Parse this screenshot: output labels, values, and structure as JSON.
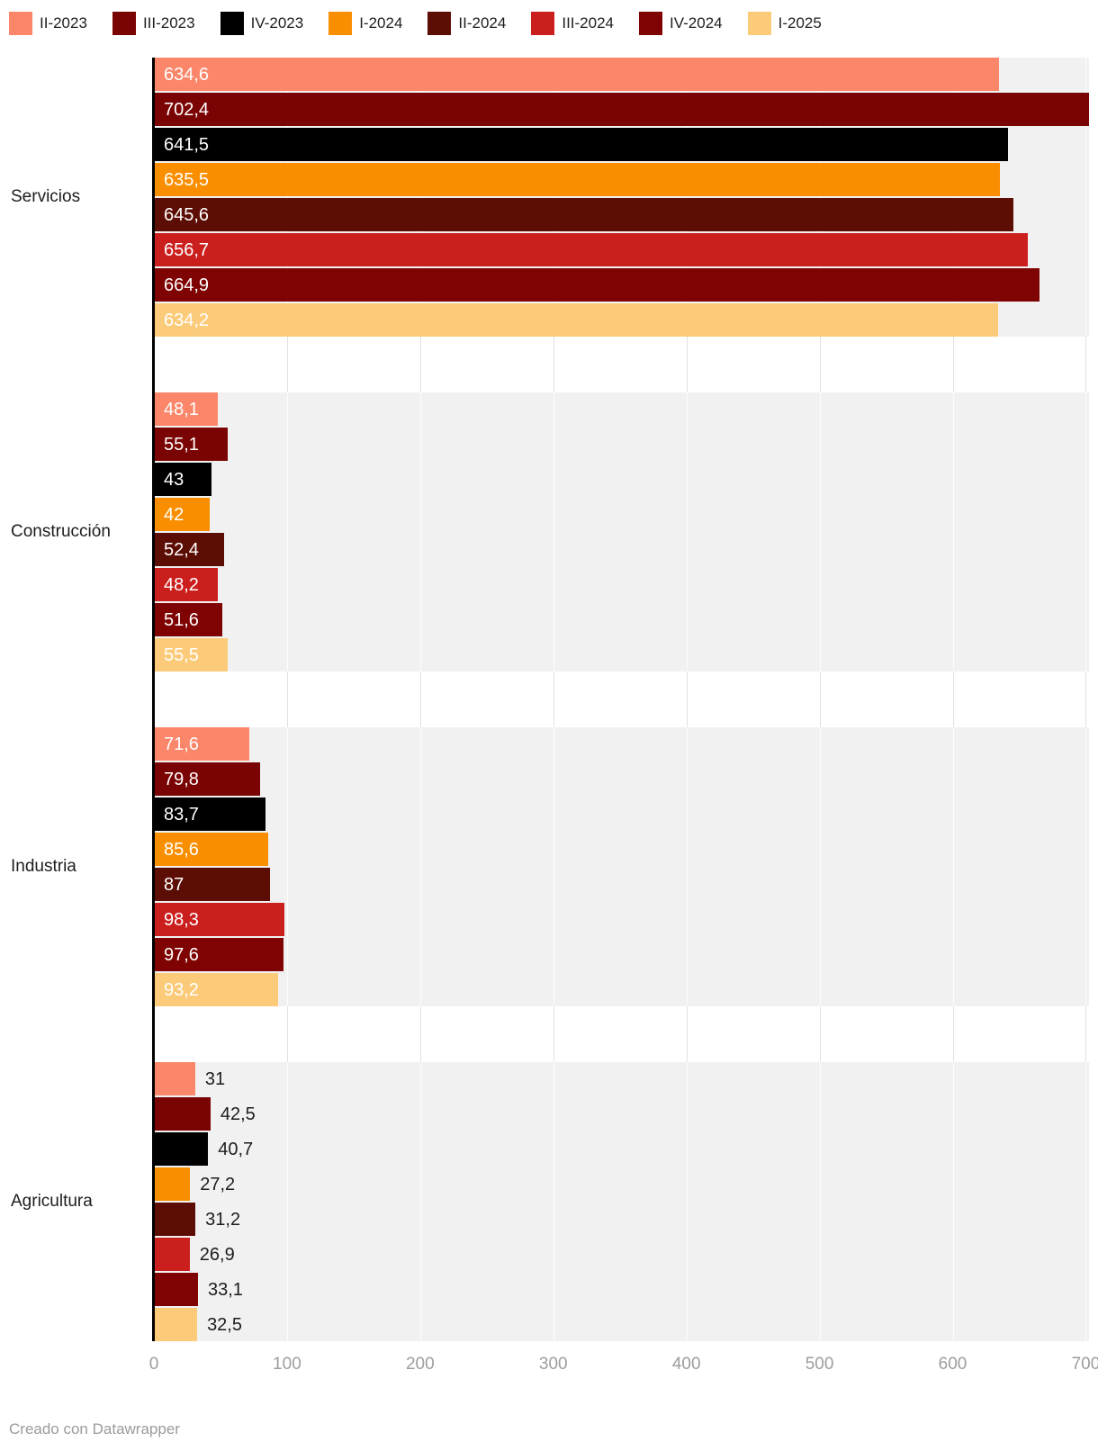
{
  "chart_data": {
    "type": "bar",
    "orientation": "horizontal",
    "title": "",
    "xlabel": "",
    "ylabel": "",
    "categories": [
      "Servicios",
      "Construcción",
      "Industria",
      "Agricultura"
    ],
    "series": [
      {
        "name": "II-2023",
        "color": "#FB8669",
        "values": [
          634.6,
          48.1,
          71.6,
          31
        ]
      },
      {
        "name": "III-2023",
        "color": "#7A0403",
        "values": [
          702.4,
          55.1,
          79.8,
          42.5
        ]
      },
      {
        "name": "IV-2023",
        "color": "#000000",
        "values": [
          641.5,
          43,
          83.7,
          40.7
        ]
      },
      {
        "name": "I-2024",
        "color": "#F98E00",
        "values": [
          635.5,
          42,
          85.6,
          27.2
        ]
      },
      {
        "name": "II-2024",
        "color": "#5C0D04",
        "values": [
          645.6,
          52.4,
          87,
          31.2
        ]
      },
      {
        "name": "III-2024",
        "color": "#CB1F1E",
        "values": [
          656.7,
          48.2,
          98.3,
          26.9
        ]
      },
      {
        "name": "IV-2024",
        "color": "#7E0302",
        "values": [
          664.9,
          51.6,
          97.6,
          33.1
        ]
      },
      {
        "name": "I-2025",
        "color": "#FCCB79",
        "values": [
          634.2,
          55.5,
          93.2,
          32.5
        ]
      }
    ],
    "value_label_decimal_separator": ",",
    "label_placement_by_category": [
      "inside",
      "inside",
      "inside",
      "outside"
    ],
    "x_ticks": [
      0,
      100,
      200,
      300,
      400,
      500,
      600,
      700
    ],
    "xlim": [
      0,
      702.4
    ],
    "grid": true,
    "legend_position": "top"
  },
  "footer": {
    "credit": "Creado con Datawrapper"
  }
}
